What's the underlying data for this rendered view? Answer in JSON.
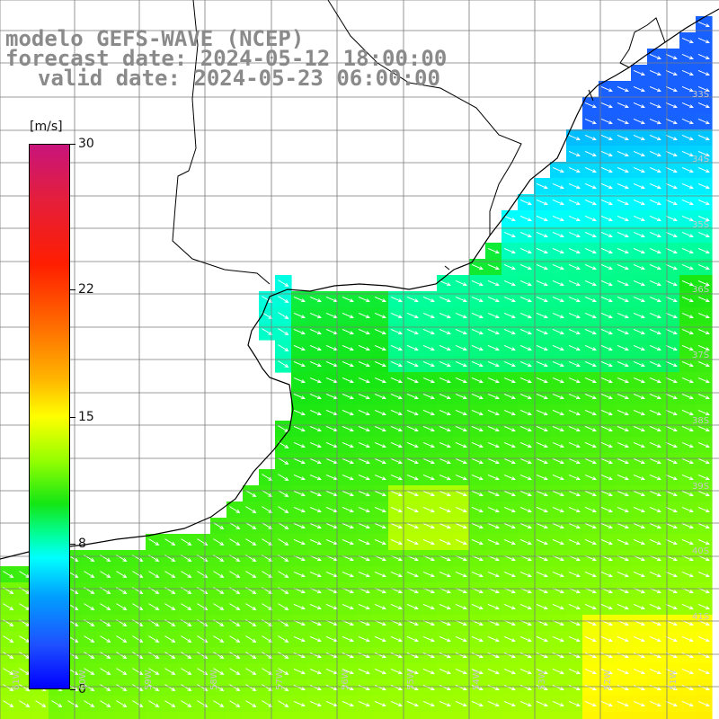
{
  "title": {
    "model": "modelo GEFS-WAVE (NCEP)",
    "forecast": "forecast date: 2024-05-12 18:00:00",
    "valid": "valid date: 2024-05-23 06:00:00"
  },
  "colorbar": {
    "unit": "[m/s]",
    "min": 0,
    "max": 30,
    "labels": [
      "30",
      "22",
      "15",
      "8",
      "0"
    ],
    "label_values": [
      30,
      22,
      15,
      8,
      0
    ]
  },
  "map": {
    "latitude_labels": [
      "33S",
      "34S",
      "35S",
      "36S",
      "37S",
      "38S",
      "39S",
      "40S",
      "41S"
    ],
    "longitude_labels": [
      "61W",
      "60W",
      "59W",
      "58W",
      "57W",
      "56W",
      "55W",
      "54W",
      "53W",
      "52W",
      "51W"
    ],
    "palette": {
      "land": "#ffffff",
      "coastline": "#000000",
      "gridline": "#7a7a7a",
      "wind_arrow": "#ffffff"
    }
  }
}
